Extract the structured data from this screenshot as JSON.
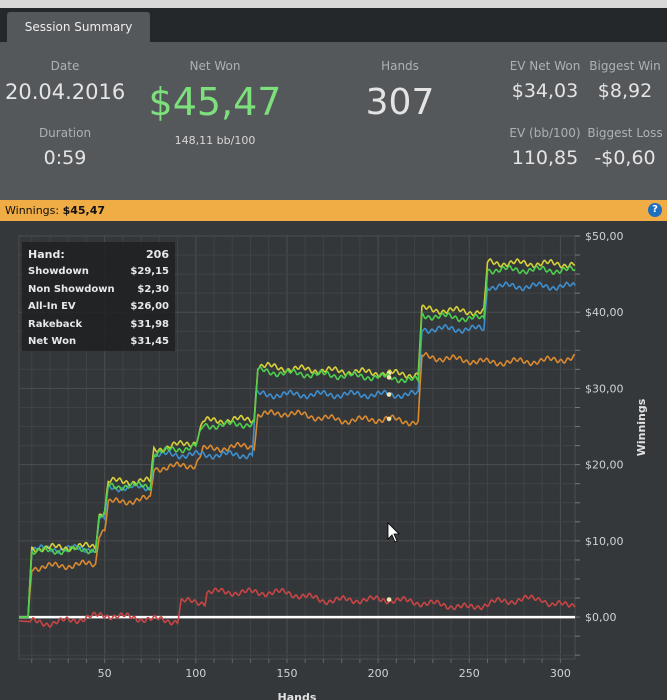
{
  "tab": {
    "label": "Session Summary"
  },
  "summary": {
    "date_label": "Date",
    "date": "20.04.2016",
    "duration_label": "Duration",
    "duration": "0:59",
    "net_won_label": "Net Won",
    "net_won": "$45,47",
    "bb100": "148,11 bb/100",
    "hands_label": "Hands",
    "hands": "307",
    "ev_net_won_label": "EV Net Won",
    "ev_net_won": "$34,03",
    "biggest_win_label": "Biggest Win",
    "biggest_win": "$8,92",
    "ev_bb100_label": "EV (bb/100)",
    "ev_bb100": "110,85",
    "biggest_loss_label": "Biggest Loss",
    "biggest_loss": "-$0,60"
  },
  "winnings_bar": {
    "label": "Winnings:",
    "value": "$45,47",
    "help_icon": "question-circle-icon"
  },
  "tooltip": {
    "rows": [
      {
        "label": "Hand:",
        "value": "206"
      },
      {
        "label": "Showdown",
        "value": "$29,15"
      },
      {
        "label": "Non Showdown",
        "value": "$2,30"
      },
      {
        "label": "All-In EV",
        "value": "$26,00"
      },
      {
        "label": "Rakeback",
        "value": "$31,98"
      },
      {
        "label": "Net Won",
        "value": "$31,45"
      }
    ]
  },
  "chart_data": {
    "type": "line",
    "xlabel": "Hands",
    "ylabel": "Winnings",
    "xlim": [
      3,
      308
    ],
    "ylim": [
      -5.5,
      50
    ],
    "xticks": [
      "50",
      "100",
      "150",
      "200",
      "250",
      "300"
    ],
    "yticks": [
      "$0,00",
      "$10,00",
      "$20,00",
      "$30,00",
      "$40,00",
      "$50,00"
    ],
    "grid": true,
    "highlight_hand": 206,
    "series": [
      {
        "key": "allin_ev",
        "color": "#d9892f",
        "points": [
          [
            3,
            0
          ],
          [
            8,
            0
          ],
          [
            10,
            6.5
          ],
          [
            45,
            7
          ],
          [
            47,
            11
          ],
          [
            50,
            11.5
          ],
          [
            52,
            15
          ],
          [
            75,
            15.5
          ],
          [
            77,
            19.5
          ],
          [
            100,
            20
          ],
          [
            104,
            22
          ],
          [
            132,
            22.5
          ],
          [
            134,
            26.5
          ],
          [
            150,
            26.8
          ],
          [
            180,
            25.8
          ],
          [
            206,
            26
          ],
          [
            222,
            25.5
          ],
          [
            224,
            34.2
          ],
          [
            258,
            33.5
          ],
          [
            260,
            33.4
          ],
          [
            290,
            33.6
          ],
          [
            308,
            34
          ]
        ]
      },
      {
        "key": "showdown",
        "color": "#3d8fd0",
        "points": [
          [
            3,
            0
          ],
          [
            8,
            0
          ],
          [
            10,
            8.9
          ],
          [
            45,
            9
          ],
          [
            47,
            12.8
          ],
          [
            50,
            12.8
          ],
          [
            52,
            17
          ],
          [
            75,
            17
          ],
          [
            77,
            21.3
          ],
          [
            131,
            21.3
          ],
          [
            133,
            29.2
          ],
          [
            222,
            29.2
          ],
          [
            224,
            37.8
          ],
          [
            258,
            37.8
          ],
          [
            260,
            43.4
          ],
          [
            308,
            43.4
          ]
        ]
      },
      {
        "key": "non_showdown",
        "color": "#c94545",
        "points": [
          [
            3,
            -0.5
          ],
          [
            20,
            -0.8
          ],
          [
            35,
            -0.3
          ],
          [
            50,
            0.3
          ],
          [
            75,
            -0.3
          ],
          [
            90,
            -0.5
          ],
          [
            92,
            2
          ],
          [
            105,
            2
          ],
          [
            106,
            3.3
          ],
          [
            150,
            3.2
          ],
          [
            170,
            2.2
          ],
          [
            206,
            2.3
          ],
          [
            240,
            1.5
          ],
          [
            250,
            1.2
          ],
          [
            265,
            2
          ],
          [
            280,
            2.3
          ],
          [
            290,
            2.5
          ],
          [
            295,
            1.5
          ],
          [
            308,
            1.8
          ]
        ]
      },
      {
        "key": "rakeback",
        "color": "#d8d038",
        "points": [
          [
            3,
            0
          ],
          [
            8,
            0
          ],
          [
            10,
            9
          ],
          [
            45,
            9.3
          ],
          [
            47,
            13.5
          ],
          [
            50,
            14
          ],
          [
            52,
            17.8
          ],
          [
            75,
            17.8
          ],
          [
            77,
            22
          ],
          [
            100,
            23
          ],
          [
            104,
            25.7
          ],
          [
            132,
            26
          ],
          [
            134,
            33
          ],
          [
            150,
            32.6
          ],
          [
            206,
            31.98
          ],
          [
            222,
            31.8
          ],
          [
            224,
            40.4
          ],
          [
            258,
            40
          ],
          [
            260,
            46.5
          ],
          [
            308,
            46.3
          ]
        ]
      },
      {
        "key": "net_won",
        "color": "#4dd04d",
        "points": [
          [
            3,
            0
          ],
          [
            8,
            0
          ],
          [
            10,
            8.6
          ],
          [
            45,
            8.9
          ],
          [
            47,
            13
          ],
          [
            50,
            13.4
          ],
          [
            52,
            17.2
          ],
          [
            75,
            17.2
          ],
          [
            77,
            21.5
          ],
          [
            100,
            22.4
          ],
          [
            104,
            25.1
          ],
          [
            132,
            25.4
          ],
          [
            134,
            32.3
          ],
          [
            150,
            32
          ],
          [
            206,
            31.45
          ],
          [
            222,
            31
          ],
          [
            224,
            39.6
          ],
          [
            258,
            39.1
          ],
          [
            260,
            45.6
          ],
          [
            308,
            45.5
          ]
        ]
      }
    ]
  }
}
